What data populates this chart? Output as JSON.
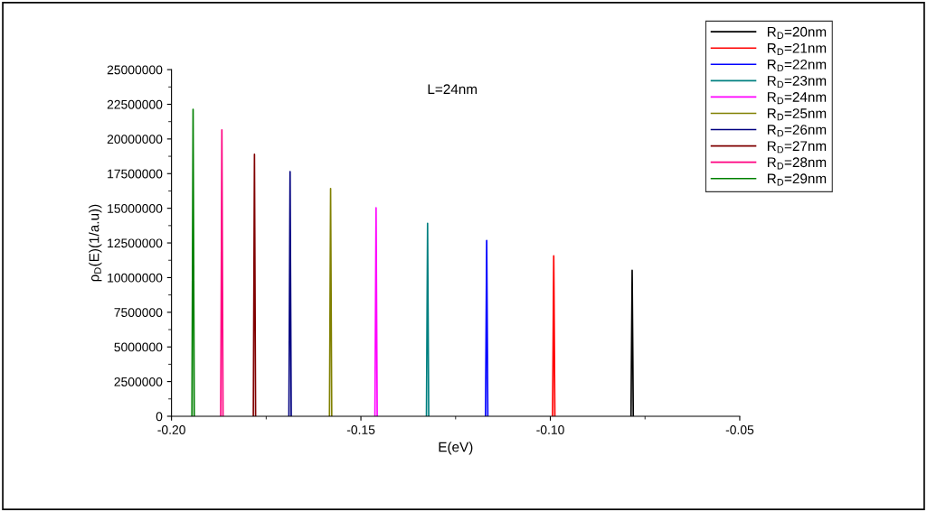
{
  "chart_data": {
    "type": "line",
    "xlabel": "E(eV)",
    "ylabel": "ρ$_{D}$(E)(1/a.u))",
    "annotations": [
      "L=24nm"
    ],
    "xlim": [
      -0.2,
      -0.05
    ],
    "xticks": [
      {
        "value": -0.2,
        "label": "-0.20"
      },
      {
        "value": -0.15,
        "label": "-0.15"
      },
      {
        "value": -0.1,
        "label": "-0.10"
      },
      {
        "value": -0.05,
        "label": "-0.05"
      }
    ],
    "ylim": [
      0,
      25000000
    ],
    "yticks": [
      0,
      2500000,
      5000000,
      7500000,
      10000000,
      12500000,
      15000000,
      17500000,
      20000000,
      22500000,
      25000000
    ],
    "grid": false,
    "legend": "top right",
    "marker": "none",
    "line_style": "solid",
    "series": [
      {
        "name": "R$_{D}$=20nm",
        "color": "#000000",
        "x": [
          -0.0787,
          -0.0784,
          -0.0781
        ],
        "values": [
          0,
          10520000,
          0
        ]
      },
      {
        "name": "R$_{D}$=21nm",
        "color": "#ff0000",
        "x": [
          -0.0994,
          -0.0991,
          -0.0988
        ],
        "values": [
          0,
          11570000,
          0
        ]
      },
      {
        "name": "R$_{D}$=22nm",
        "color": "#0000ff",
        "x": [
          -0.1171,
          -0.1168,
          -0.1165
        ],
        "values": [
          0,
          12680000,
          0
        ]
      },
      {
        "name": "R$_{D}$=23nm",
        "color": "#008080",
        "x": [
          -0.1327,
          -0.1324,
          -0.1321
        ],
        "values": [
          0,
          13920000,
          0
        ]
      },
      {
        "name": "R$_{D}$=24nm",
        "color": "#ff00ff",
        "x": [
          -0.1463,
          -0.146,
          -0.1457
        ],
        "values": [
          0,
          15030000,
          0
        ]
      },
      {
        "name": "R$_{D}$=25nm",
        "color": "#808000",
        "x": [
          -0.1583,
          -0.158,
          -0.1577
        ],
        "values": [
          0,
          16420000,
          0
        ]
      },
      {
        "name": "R$_{D}$=26nm",
        "color": "#000080",
        "x": [
          -0.169,
          -0.1687,
          -0.1684
        ],
        "values": [
          0,
          17640000,
          0
        ]
      },
      {
        "name": "R$_{D}$=27nm",
        "color": "#800000",
        "x": [
          -0.1784,
          -0.1781,
          -0.1778
        ],
        "values": [
          0,
          18890000,
          0
        ]
      },
      {
        "name": "R$_{D}$=28nm",
        "color": "#ff0080",
        "x": [
          -0.187,
          -0.1867,
          -0.1864
        ],
        "values": [
          0,
          20650000,
          0
        ]
      },
      {
        "name": "R$_{D}$=29nm",
        "color": "#008000",
        "x": [
          -0.1946,
          -0.1943,
          -0.194
        ],
        "values": [
          0,
          22130000,
          0
        ]
      }
    ]
  }
}
